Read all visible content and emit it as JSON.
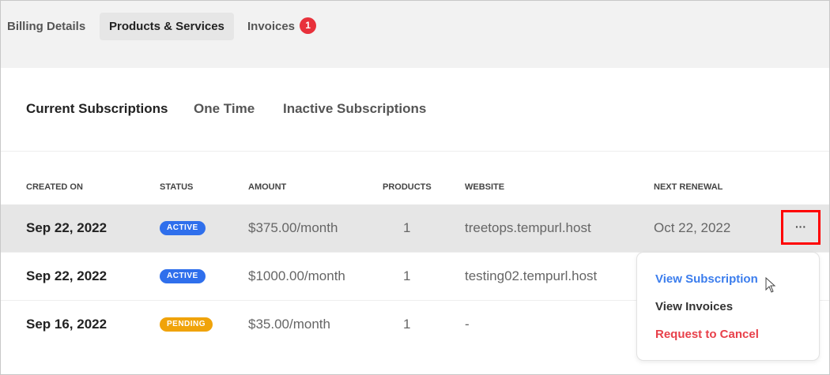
{
  "tabs": [
    {
      "label": "Billing Details"
    },
    {
      "label": "Products & Services",
      "active": true
    },
    {
      "label": "Invoices",
      "badge": "1"
    }
  ],
  "subtabs": [
    {
      "label": "Current Subscriptions",
      "active": true
    },
    {
      "label": "One Time"
    },
    {
      "label": "Inactive Subscriptions"
    }
  ],
  "table": {
    "headers": [
      "CREATED ON",
      "STATUS",
      "AMOUNT",
      "PRODUCTS",
      "WEBSITE",
      "NEXT RENEWAL"
    ],
    "rows": [
      {
        "created": "Sep 22, 2022",
        "status": "ACTIVE",
        "amount": "$375.00/month",
        "products": "1",
        "website": "treetops.tempurl.host",
        "renewal": "Oct 22, 2022"
      },
      {
        "created": "Sep 22, 2022",
        "status": "ACTIVE",
        "amount": "$1000.00/month",
        "products": "1",
        "website": "testing02.tempurl.host",
        "renewal": ""
      },
      {
        "created": "Sep 16, 2022",
        "status": "PENDING",
        "amount": "$35.00/month",
        "products": "1",
        "website": "-",
        "renewal": ""
      }
    ]
  },
  "more_button": "···",
  "menu": {
    "items": [
      "View Subscription",
      "View Invoices",
      "Request to Cancel"
    ]
  },
  "colors": {
    "active": "#2f6fec",
    "pending": "#f0a30a",
    "link": "#3b7ded",
    "danger": "#e8404a",
    "highlight_border": "#ff0000"
  }
}
